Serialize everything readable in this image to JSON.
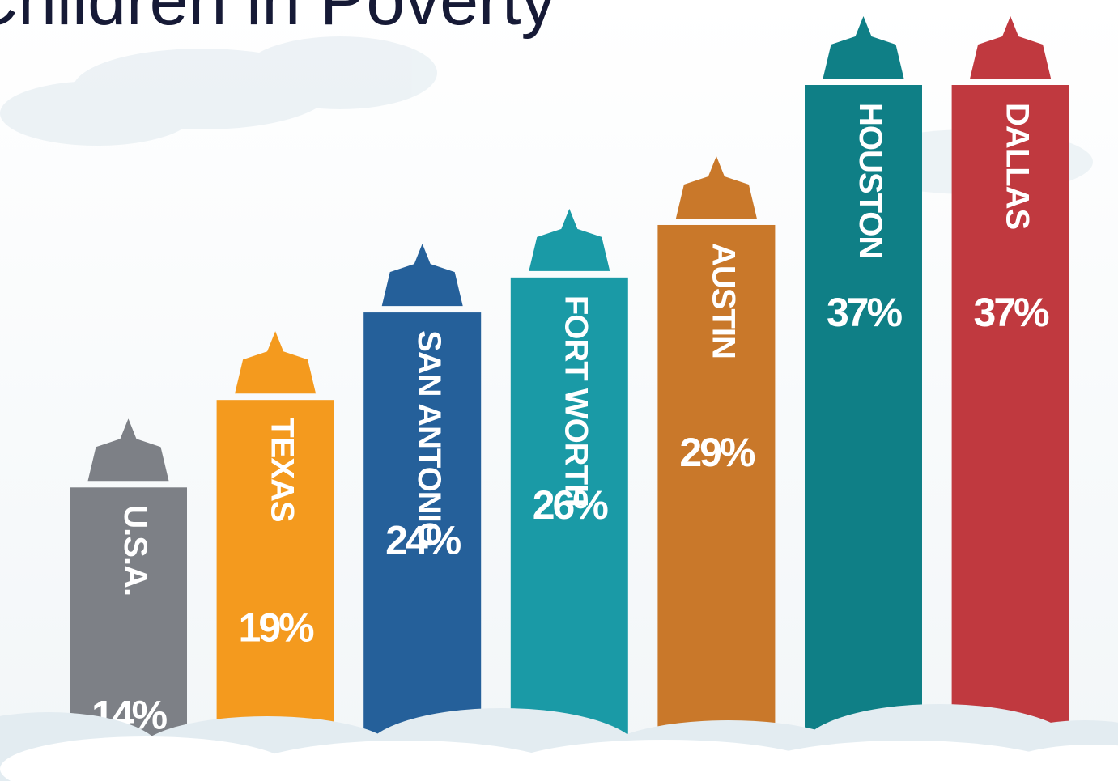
{
  "chart_data": {
    "type": "bar",
    "title": "Children in Poverty",
    "categories": [
      "U.S.A.",
      "TEXAS",
      "SAN ANTONIO",
      "FORT WORTH",
      "AUSTIN",
      "HOUSTON",
      "DALLAS"
    ],
    "values": [
      14,
      19,
      24,
      26,
      29,
      37,
      37
    ],
    "value_labels": [
      "14%",
      "19%",
      "24%",
      "26%",
      "29%",
      "37%",
      "37%"
    ],
    "colors": [
      "#7d8086",
      "#f49a1e",
      "#25609a",
      "#1a9aa6",
      "#c9782a",
      "#0f7f86",
      "#c0393f"
    ]
  }
}
